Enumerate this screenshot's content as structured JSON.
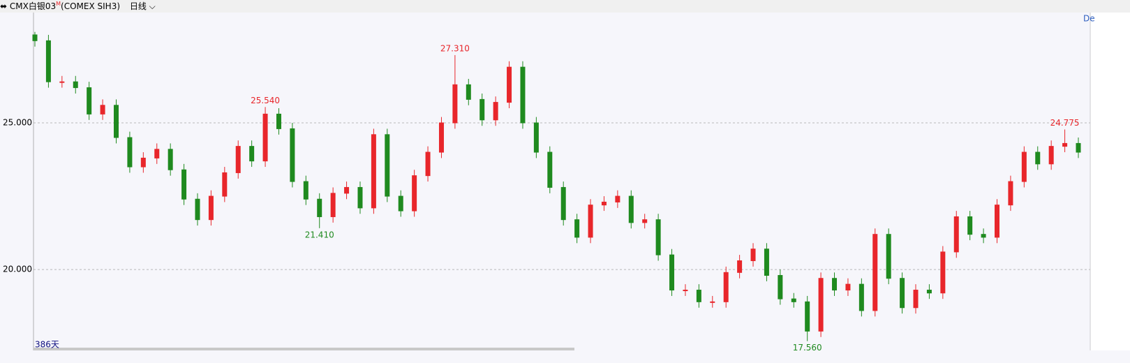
{
  "header": {
    "symbol": "CMX白银03",
    "tag": "M",
    "contract": "(COMEX SIH3)",
    "period": "日线"
  },
  "corner_label": "De",
  "footer_label": "386天",
  "chart_data": {
    "type": "candlestick",
    "up_color": "#e8262b",
    "down_color": "#1f8a1f",
    "ylim": [
      17.29,
      28.76
    ],
    "yticks": [
      {
        "value": 20,
        "label": "20.000"
      },
      {
        "value": 25,
        "label": "25.000"
      }
    ],
    "grid": true,
    "open": [
      28.0,
      27.8,
      26.4,
      26.4,
      26.2,
      25.3,
      25.6,
      24.5,
      23.5,
      23.8,
      24.1,
      23.4,
      22.4,
      21.7,
      22.5,
      23.3,
      24.2,
      23.7,
      25.3,
      24.8,
      23.0,
      22.4,
      21.8,
      22.6,
      22.8,
      22.1,
      24.6,
      22.5,
      22.0,
      23.2,
      24.0,
      25.0,
      26.3,
      25.8,
      25.1,
      25.7,
      26.9,
      25.0,
      24.0,
      22.8,
      21.7,
      21.1,
      22.2,
      22.3,
      22.5,
      21.6,
      21.7,
      20.5,
      19.3,
      19.3,
      18.9,
      18.9,
      19.9,
      20.3,
      20.7,
      19.8,
      19.0,
      18.9,
      17.9,
      19.7,
      19.3,
      19.5,
      18.6,
      21.2,
      19.7,
      18.7,
      19.3,
      19.2,
      20.6,
      21.8,
      21.2,
      21.1,
      22.2,
      23.0,
      24.0,
      23.6,
      24.2,
      24.3
    ],
    "high": [
      28.1,
      28.0,
      26.6,
      26.6,
      26.4,
      25.8,
      25.8,
      24.7,
      24.0,
      24.3,
      24.3,
      23.6,
      22.6,
      22.7,
      23.5,
      24.4,
      24.4,
      25.54,
      25.5,
      25.0,
      23.2,
      22.6,
      22.8,
      23.0,
      23.0,
      24.8,
      24.8,
      22.7,
      23.4,
      24.2,
      25.2,
      27.31,
      26.5,
      26.0,
      25.9,
      27.1,
      27.1,
      25.2,
      24.2,
      23.0,
      21.9,
      22.4,
      22.5,
      22.7,
      22.7,
      21.9,
      21.9,
      20.7,
      19.5,
      19.5,
      19.1,
      20.1,
      20.5,
      20.9,
      20.9,
      20.0,
      19.2,
      19.1,
      19.9,
      19.9,
      19.7,
      19.7,
      21.4,
      21.4,
      19.9,
      19.5,
      19.5,
      20.8,
      22.0,
      22.0,
      21.4,
      22.4,
      23.2,
      24.2,
      24.2,
      24.4,
      24.775,
      24.5
    ],
    "low": [
      27.6,
      26.2,
      26.2,
      26.0,
      25.1,
      25.1,
      24.3,
      23.3,
      23.3,
      23.6,
      23.2,
      22.2,
      21.5,
      21.5,
      22.3,
      23.1,
      23.5,
      23.5,
      24.6,
      22.8,
      22.2,
      21.41,
      21.6,
      22.4,
      21.9,
      21.9,
      22.3,
      21.8,
      21.8,
      23.0,
      23.8,
      24.8,
      25.6,
      24.9,
      24.9,
      25.5,
      24.8,
      23.8,
      22.6,
      21.5,
      20.9,
      20.9,
      22.0,
      22.1,
      21.4,
      21.4,
      20.3,
      19.1,
      19.1,
      18.7,
      18.7,
      18.7,
      19.7,
      20.1,
      19.6,
      18.8,
      18.7,
      17.56,
      17.7,
      19.1,
      19.1,
      18.4,
      18.4,
      19.5,
      18.5,
      18.5,
      19.0,
      19.0,
      20.4,
      21.0,
      20.9,
      20.9,
      22.0,
      22.8,
      23.4,
      23.4,
      24.0,
      23.8
    ],
    "close": [
      27.8,
      26.4,
      26.4,
      26.2,
      25.3,
      25.6,
      24.5,
      23.5,
      23.8,
      24.1,
      23.4,
      22.4,
      21.7,
      22.5,
      23.3,
      24.2,
      23.7,
      25.3,
      24.8,
      23.0,
      22.4,
      21.8,
      22.6,
      22.8,
      22.1,
      24.6,
      22.5,
      22.0,
      23.2,
      24.0,
      25.0,
      26.3,
      25.8,
      25.1,
      25.7,
      26.9,
      25.0,
      24.0,
      22.8,
      21.7,
      21.1,
      22.2,
      22.3,
      22.5,
      21.6,
      21.7,
      20.5,
      19.3,
      19.3,
      18.9,
      18.9,
      19.9,
      20.3,
      20.7,
      19.8,
      19.0,
      18.9,
      17.9,
      19.7,
      19.3,
      19.5,
      18.6,
      21.2,
      19.7,
      18.7,
      19.3,
      19.2,
      20.6,
      21.8,
      21.2,
      21.1,
      22.2,
      23.0,
      24.0,
      23.6,
      24.2,
      24.3,
      24.0
    ],
    "annotations": [
      {
        "value": 25.54,
        "label": "25.540"
      },
      {
        "value": 21.41,
        "label": "21.410"
      },
      {
        "value": 27.31,
        "label": "27.310"
      },
      {
        "value": 17.56,
        "label": "17.560"
      },
      {
        "value": 24.775,
        "label": "24.775"
      }
    ]
  }
}
